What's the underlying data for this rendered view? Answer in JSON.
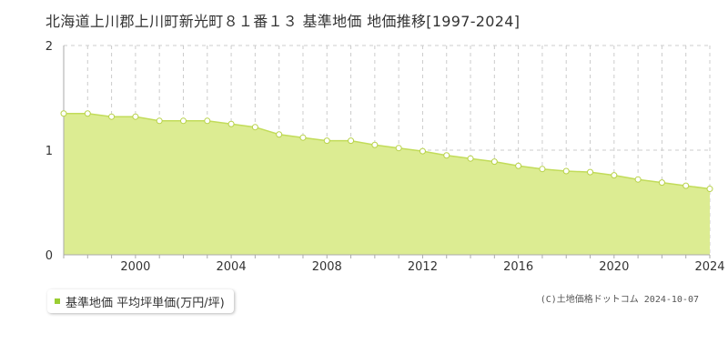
{
  "chart_data": {
    "type": "area",
    "title": "北海道上川郡上川町新光町８１番１３ 基準地価 地価推移[1997-2024]",
    "x": [
      1997,
      1998,
      1999,
      2000,
      2001,
      2002,
      2003,
      2004,
      2005,
      2006,
      2007,
      2008,
      2009,
      2010,
      2011,
      2012,
      2013,
      2014,
      2015,
      2016,
      2017,
      2018,
      2019,
      2020,
      2021,
      2022,
      2023,
      2024
    ],
    "series": [
      {
        "name": "基準地価 平均坪単価(万円/坪)",
        "values": [
          1.35,
          1.35,
          1.32,
          1.32,
          1.28,
          1.28,
          1.28,
          1.25,
          1.22,
          1.15,
          1.12,
          1.09,
          1.09,
          1.05,
          1.02,
          0.99,
          0.95,
          0.92,
          0.89,
          0.85,
          0.82,
          0.8,
          0.79,
          0.76,
          0.72,
          0.69,
          0.66,
          0.63
        ]
      }
    ],
    "xticks": [
      "2000",
      "2004",
      "2008",
      "2012",
      "2016",
      "2020",
      "2024"
    ],
    "yticks": [
      "0",
      "1",
      "2"
    ],
    "xlim": [
      1997,
      2024
    ],
    "ylim": [
      0,
      2
    ],
    "grid": true,
    "legend": "bottom-left",
    "colors": {
      "fill": "#dcec92",
      "line": "#c2dc5a",
      "point_stroke": "#b8d24a",
      "marker": "#9acd32"
    }
  },
  "copyright": "(C)土地価格ドットコム 2024-10-07"
}
